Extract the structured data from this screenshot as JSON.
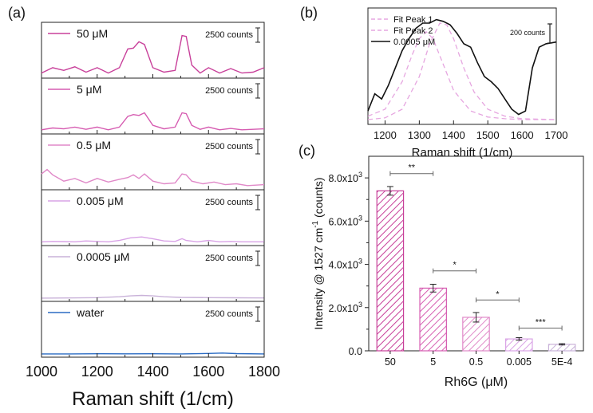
{
  "panel_labels": {
    "a": "(a)",
    "b": "(b)",
    "c": "(c)"
  },
  "colors": {
    "magenta_dark": "#c8409a",
    "magenta": "#d65cb1",
    "pink_mid": "#e089c8",
    "lavender": "#d9a3e6",
    "lilac_light": "#c9b2d9",
    "water_blue": "#2b6cc4",
    "black": "#111111"
  },
  "chart_data": [
    {
      "type": "line",
      "panel": "(a)",
      "xlabel": "Raman shift (1/cm)",
      "xlim": [
        1000,
        1800
      ],
      "xticks": [
        "1000",
        "1200",
        "1400",
        "1600",
        "1800"
      ],
      "scale_bar_label": "2500 counts",
      "series": [
        {
          "name": "50 μM",
          "color": "#c8409a",
          "x": [
            1000,
            1040,
            1080,
            1120,
            1160,
            1200,
            1240,
            1280,
            1310,
            1330,
            1350,
            1370,
            1400,
            1440,
            1480,
            1505,
            1520,
            1540,
            1570,
            1600,
            1640,
            1680,
            1720,
            1760,
            1800
          ],
          "y": [
            300,
            900,
            600,
            1000,
            400,
            900,
            300,
            900,
            3000,
            3100,
            3800,
            3500,
            900,
            400,
            600,
            4500,
            4400,
            1200,
            300,
            900,
            300,
            800,
            300,
            400,
            900
          ]
        },
        {
          "name": "5 μM",
          "color": "#d65cb1",
          "x": [
            1000,
            1040,
            1080,
            1120,
            1160,
            1200,
            1240,
            1280,
            1310,
            1330,
            1350,
            1370,
            1400,
            1440,
            1480,
            1505,
            1520,
            1540,
            1570,
            1600,
            1640,
            1680,
            1720,
            1760,
            1800
          ],
          "y": [
            200,
            400,
            300,
            500,
            250,
            500,
            200,
            500,
            1700,
            1900,
            1800,
            2100,
            700,
            300,
            500,
            2100,
            2000,
            700,
            250,
            500,
            200,
            350,
            200,
            250,
            300
          ]
        },
        {
          "name": "0.5 μM",
          "color": "#e089c8",
          "x": [
            1000,
            1020,
            1040,
            1080,
            1120,
            1160,
            1200,
            1240,
            1280,
            1310,
            1330,
            1350,
            1370,
            1400,
            1440,
            1480,
            1505,
            1520,
            1540,
            1580,
            1620,
            1660,
            1700,
            1740,
            1800
          ],
          "y": [
            1500,
            2000,
            1400,
            700,
            1000,
            500,
            1000,
            600,
            900,
            1100,
            1400,
            1000,
            1500,
            700,
            400,
            500,
            1500,
            1400,
            700,
            400,
            600,
            300,
            400,
            200,
            300
          ]
        },
        {
          "name": "0.005 μM",
          "color": "#d9a3e6",
          "x": [
            1000,
            1040,
            1080,
            1120,
            1160,
            1200,
            1240,
            1280,
            1320,
            1360,
            1400,
            1440,
            1480,
            1505,
            1520,
            1560,
            1600,
            1640,
            1680,
            1720,
            1760,
            1800
          ],
          "y": [
            150,
            200,
            180,
            150,
            250,
            200,
            150,
            300,
            600,
            700,
            500,
            250,
            200,
            500,
            300,
            150,
            300,
            150,
            200,
            150,
            150,
            150
          ]
        },
        {
          "name": "0.0005 μM",
          "color": "#c9b2d9",
          "x": [
            1000,
            1100,
            1200,
            1280,
            1320,
            1360,
            1400,
            1440,
            1500,
            1600,
            1700,
            1800
          ],
          "y": [
            100,
            120,
            150,
            250,
            350,
            400,
            350,
            250,
            180,
            150,
            130,
            120
          ]
        },
        {
          "name": "water",
          "color": "#2b6cc4",
          "x": [
            1000,
            1100,
            1200,
            1300,
            1400,
            1500,
            1600,
            1650,
            1700,
            1800
          ],
          "y": [
            100,
            100,
            120,
            110,
            120,
            100,
            150,
            200,
            130,
            100
          ]
        }
      ]
    },
    {
      "type": "line",
      "panel": "(b)",
      "xlabel": "Raman shift (1/cm)",
      "xlim": [
        1150,
        1700
      ],
      "xticks": [
        "1200",
        "1300",
        "1400",
        "1500",
        "1600",
        "1700"
      ],
      "scale_bar_label": "200 counts",
      "series": [
        {
          "name": "Fit Peak 1",
          "color": "#e6a6e0",
          "dashed": true,
          "x": [
            1150,
            1200,
            1250,
            1280,
            1300,
            1320,
            1340,
            1370,
            1400,
            1450,
            1500,
            1550,
            1600,
            1700
          ],
          "y": [
            20,
            60,
            220,
            380,
            470,
            510,
            470,
            320,
            170,
            50,
            15,
            5,
            0,
            0
          ]
        },
        {
          "name": "Fit Peak 2",
          "color": "#e6a6e0",
          "dashed": true,
          "x": [
            1150,
            1200,
            1250,
            1300,
            1330,
            1360,
            1380,
            1400,
            1430,
            1460,
            1500,
            1550,
            1600,
            1700
          ],
          "y": [
            0,
            10,
            60,
            250,
            440,
            560,
            550,
            470,
            300,
            160,
            60,
            20,
            5,
            0
          ]
        },
        {
          "name": "0.0005 μM",
          "color": "#111111",
          "dashed": false,
          "x": [
            1150,
            1170,
            1190,
            1210,
            1230,
            1250,
            1270,
            1290,
            1310,
            1330,
            1350,
            1370,
            1390,
            1410,
            1430,
            1450,
            1470,
            1490,
            1510,
            1530,
            1550,
            1570,
            1590,
            1610,
            1630,
            1650,
            1670,
            1700
          ],
          "y": [
            50,
            150,
            120,
            200,
            300,
            400,
            470,
            530,
            560,
            560,
            580,
            570,
            550,
            500,
            440,
            420,
            330,
            250,
            220,
            180,
            120,
            60,
            30,
            50,
            300,
            420,
            440,
            450
          ]
        }
      ]
    },
    {
      "type": "bar",
      "panel": "(c)",
      "xlabel": "Rh6G (μM)",
      "ylabel_main": "Intensity @ 1527 cm",
      "ylabel_sup": "-1",
      "ylabel_tail": " (counts)",
      "categories": [
        "50",
        "5",
        "0.5",
        "0.005",
        "5E-4"
      ],
      "values": [
        7400,
        2900,
        1550,
        550,
        300
      ],
      "errors": [
        200,
        180,
        220,
        60,
        30
      ],
      "bar_colors": [
        "#c8409a",
        "#d65cb1",
        "#e089c8",
        "#d9a3e6",
        "#c9b2d9"
      ],
      "ylim": [
        0,
        9000
      ],
      "ytick_values": [
        0,
        2000,
        4000,
        6000,
        8000
      ],
      "ytick_labels": [
        {
          "base": "0.0",
          "exp": ""
        },
        {
          "base": "2.0x10",
          "exp": "3"
        },
        {
          "base": "4.0x10",
          "exp": "3"
        },
        {
          "base": "6.0x10",
          "exp": "3"
        },
        {
          "base": "8.0x10",
          "exp": "3"
        }
      ],
      "significance": [
        {
          "from": 0,
          "to": 1,
          "label": "**",
          "y": 8200
        },
        {
          "from": 1,
          "to": 2,
          "label": "*",
          "y": 3700
        },
        {
          "from": 2,
          "to": 3,
          "label": "*",
          "y": 2350
        },
        {
          "from": 3,
          "to": 4,
          "label": "***",
          "y": 1050
        }
      ]
    }
  ]
}
